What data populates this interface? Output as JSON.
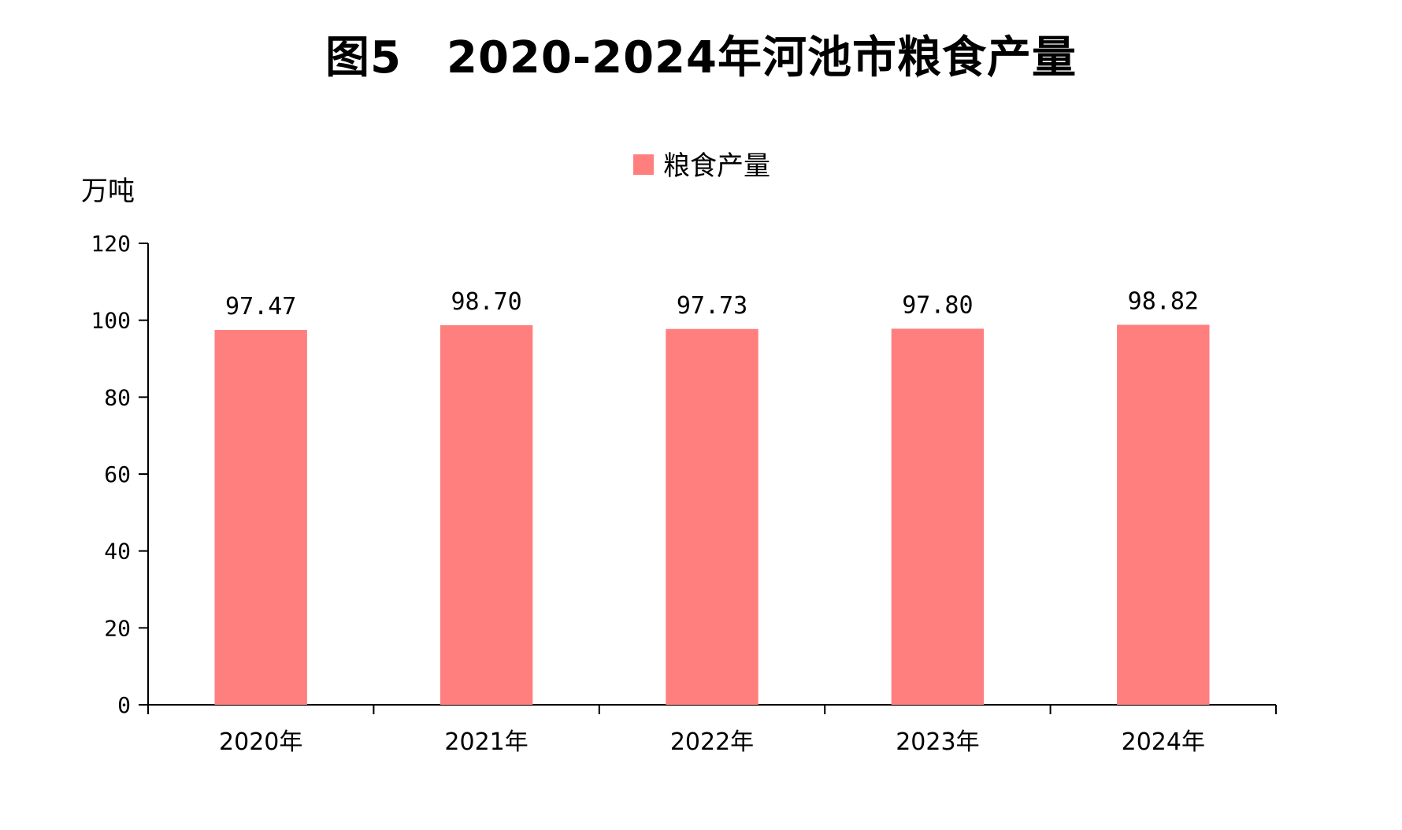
{
  "chart_data": {
    "type": "bar",
    "title": "图5　2020-2024年河池市粮食产量",
    "ylabel": "万吨",
    "categories": [
      "2020年",
      "2021年",
      "2022年",
      "2023年",
      "2024年"
    ],
    "series": [
      {
        "name": "粮食产量",
        "values": [
          97.47,
          98.7,
          97.73,
          97.8,
          98.82
        ],
        "labels": [
          "97.47",
          "98.70",
          "97.73",
          "97.80",
          "98.82"
        ],
        "color": "#ff7f7f"
      }
    ],
    "ylim": [
      0,
      120
    ],
    "yticks": [
      "0",
      "20",
      "40",
      "60",
      "80",
      "100",
      "120"
    ],
    "legend": "top-center",
    "grid": false
  }
}
